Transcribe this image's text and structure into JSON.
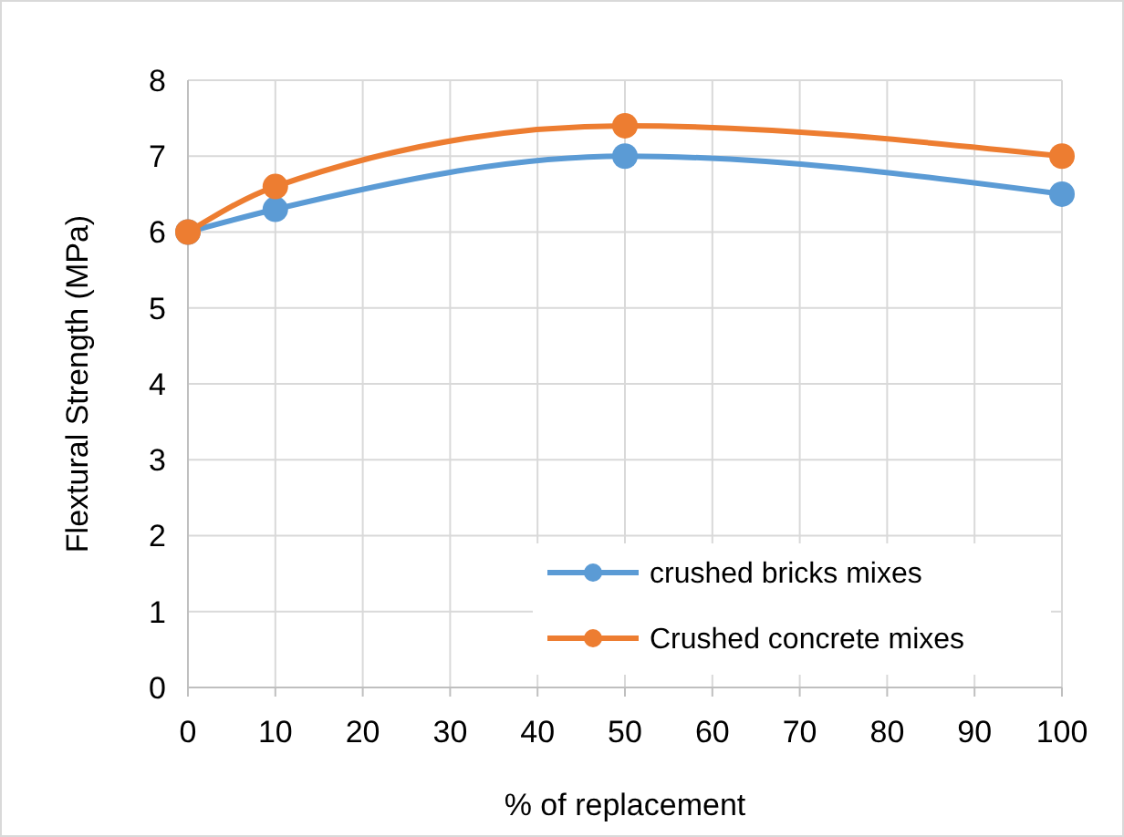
{
  "chart_data": {
    "type": "line",
    "xlabel": "% of replacement",
    "ylabel": "Flextural Strength (MPa)",
    "x": [
      0,
      10,
      50,
      100
    ],
    "series": [
      {
        "name": "crushed bricks mixes",
        "color": "#5b9bd5",
        "values": [
          6,
          6.3,
          7,
          6.5
        ]
      },
      {
        "name": "Crushed concrete mixes",
        "color": "#ed7d31",
        "values": [
          6,
          6.6,
          7.4,
          7
        ]
      }
    ],
    "xlim": [
      0,
      100
    ],
    "xticks": [
      0,
      10,
      20,
      30,
      40,
      50,
      60,
      70,
      80,
      90,
      100
    ],
    "ylim": [
      0,
      8
    ],
    "yticks": [
      0,
      1,
      2,
      3,
      4,
      5,
      6,
      7,
      8
    ],
    "grid": true,
    "legend": "bottom right",
    "marker": "circle",
    "line_style": "solid"
  }
}
